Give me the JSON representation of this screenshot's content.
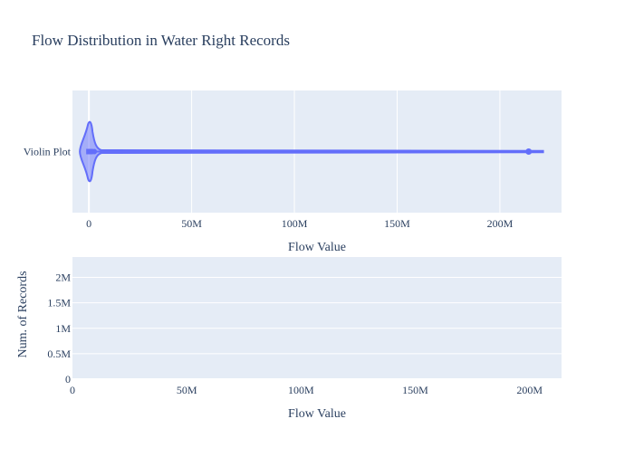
{
  "colors": {
    "plot_bg": "#e5ecf6",
    "grid": "#ffffff",
    "violin_fill": "#636efa",
    "violin_line": "#636efa",
    "text": "#2a3f5f",
    "page_bg": "#ffffff"
  },
  "title": "Flow Distribution in Water Right Records",
  "chart_data": [
    {
      "type": "violin",
      "orientation": "horizontal",
      "category_label": "Violin Plot",
      "xlabel": "Flow Value",
      "xlim": [
        -8000000,
        230000000
      ],
      "xticks": [
        0,
        50000000,
        100000000,
        150000000,
        200000000
      ],
      "xtick_labels": [
        "0",
        "50M",
        "100M",
        "150M",
        "200M"
      ],
      "grid": true,
      "distribution": {
        "whisker_min": 0,
        "q1": 0,
        "median": 0,
        "q3": 2000000,
        "whisker_max": 221000000,
        "outliers": [
          214000000
        ]
      }
    },
    {
      "type": "bar",
      "xlabel": "Flow Value",
      "ylabel": "Num. of Records",
      "xlim": [
        0,
        214000000
      ],
      "ylim": [
        0,
        2400000
      ],
      "xticks": [
        0,
        50000000,
        100000000,
        150000000,
        200000000
      ],
      "xtick_labels": [
        "0",
        "50M",
        "100M",
        "150M",
        "200M"
      ],
      "yticks": [
        0,
        500000,
        1000000,
        1500000,
        2000000
      ],
      "ytick_labels": [
        "0",
        "0.5M",
        "1M",
        "1.5M",
        "2M"
      ],
      "grid": true,
      "values": []
    }
  ]
}
